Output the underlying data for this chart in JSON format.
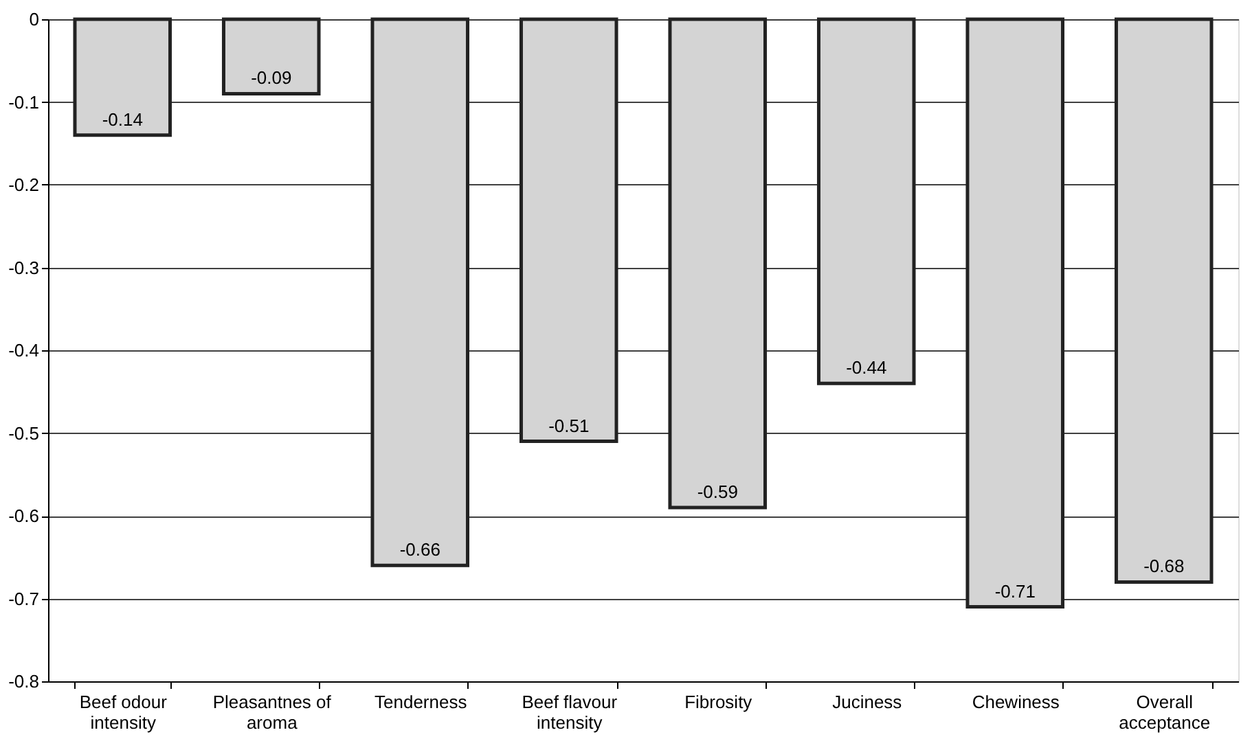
{
  "chart_data": {
    "type": "bar",
    "categories": [
      "Beef odour intensity",
      "Pleasantnes of aroma",
      "Tenderness",
      "Beef flavour intensity",
      "Fibrosity",
      "Juciness",
      "Chewiness",
      "Overall acceptance"
    ],
    "values": [
      -0.14,
      -0.09,
      -0.66,
      -0.51,
      -0.59,
      -0.44,
      -0.71,
      -0.68
    ],
    "color": "#d4d4d4",
    "ylim": [
      -0.8,
      0
    ],
    "yticks": [
      0,
      -0.1,
      -0.2,
      -0.3,
      -0.4,
      -0.5,
      -0.6,
      -0.7,
      -0.8
    ],
    "grid": "y",
    "data_labels": true
  }
}
